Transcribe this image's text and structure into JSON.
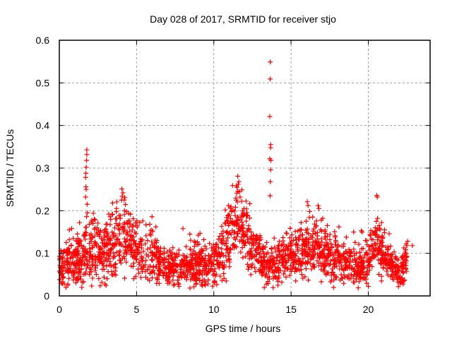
{
  "chart_data": {
    "type": "scatter",
    "title": "Day 028 of 2017, SRMTID for receiver stjo",
    "xlabel": "GPS time / hours",
    "ylabel": "SRMTID / TECUs",
    "xlim": [
      0,
      24
    ],
    "ylim": [
      0,
      0.6
    ],
    "xticks": [
      0,
      5,
      10,
      15,
      20
    ],
    "xtick_labels": [
      "0",
      "5",
      "10",
      "15",
      "20"
    ],
    "yticks": [
      0,
      0.1,
      0.2,
      0.3,
      0.4,
      0.5,
      0.6
    ],
    "ytick_labels": [
      "0",
      "0.1",
      "0.2",
      "0.3",
      "0.4",
      "0.5",
      "0.6"
    ],
    "grid": true,
    "legend": "none",
    "marker": "+",
    "color": "#ff0000",
    "series": [
      {
        "name": "SRMTID",
        "envelope": {
          "description": "approximate typical value and spread of the dense point cloud vs time (hours)",
          "x": [
            0.0,
            0.5,
            1.0,
            1.5,
            1.8,
            2.2,
            2.8,
            3.3,
            3.8,
            4.2,
            4.7,
            5.2,
            5.8,
            6.3,
            6.8,
            7.3,
            7.8,
            8.3,
            8.8,
            9.3,
            9.8,
            10.3,
            10.8,
            11.3,
            11.7,
            12.2,
            12.7,
            13.2,
            13.6,
            14.0,
            14.5,
            15.0,
            15.5,
            16.0,
            16.5,
            17.0,
            17.5,
            18.0,
            18.5,
            19.0,
            19.5,
            20.0,
            20.5,
            21.0,
            21.5,
            22.0,
            22.5
          ],
          "center": [
            0.07,
            0.08,
            0.085,
            0.09,
            0.1,
            0.12,
            0.1,
            0.12,
            0.14,
            0.14,
            0.12,
            0.1,
            0.09,
            0.085,
            0.07,
            0.07,
            0.065,
            0.07,
            0.075,
            0.07,
            0.07,
            0.09,
            0.12,
            0.16,
            0.17,
            0.14,
            0.11,
            0.08,
            0.07,
            0.085,
            0.09,
            0.1,
            0.1,
            0.11,
            0.12,
            0.1,
            0.1,
            0.085,
            0.08,
            0.075,
            0.065,
            0.09,
            0.12,
            0.1,
            0.07,
            0.055,
            0.085
          ],
          "spread": [
            0.03,
            0.035,
            0.035,
            0.04,
            0.05,
            0.05,
            0.045,
            0.05,
            0.05,
            0.05,
            0.045,
            0.04,
            0.04,
            0.035,
            0.03,
            0.03,
            0.03,
            0.03,
            0.035,
            0.035,
            0.03,
            0.04,
            0.05,
            0.05,
            0.05,
            0.05,
            0.04,
            0.03,
            0.03,
            0.035,
            0.035,
            0.035,
            0.035,
            0.04,
            0.045,
            0.04,
            0.04,
            0.035,
            0.03,
            0.03,
            0.025,
            0.035,
            0.04,
            0.035,
            0.025,
            0.02,
            0.025
          ],
          "points_per_hour": 95
        },
        "notable_points": [
          [
            13.65,
            0.549
          ],
          [
            13.65,
            0.509
          ],
          [
            13.62,
            0.421
          ],
          [
            13.68,
            0.355
          ],
          [
            13.68,
            0.348
          ],
          [
            13.62,
            0.322
          ],
          [
            13.7,
            0.318
          ],
          [
            13.68,
            0.296
          ],
          [
            13.66,
            0.268
          ],
          [
            13.64,
            0.235
          ],
          [
            1.78,
            0.343
          ],
          [
            1.78,
            0.332
          ],
          [
            1.76,
            0.318
          ],
          [
            1.74,
            0.302
          ],
          [
            1.72,
            0.288
          ],
          [
            1.7,
            0.278
          ],
          [
            1.72,
            0.256
          ],
          [
            1.74,
            0.25
          ],
          [
            1.7,
            0.232
          ],
          [
            1.8,
            0.215
          ],
          [
            1.82,
            0.195
          ],
          [
            1.76,
            0.186
          ],
          [
            11.55,
            0.281
          ],
          [
            11.62,
            0.268
          ],
          [
            11.58,
            0.262
          ],
          [
            11.5,
            0.255
          ],
          [
            11.65,
            0.244
          ],
          [
            11.7,
            0.232
          ],
          [
            11.45,
            0.225
          ],
          [
            11.8,
            0.222
          ],
          [
            11.4,
            0.208
          ],
          [
            11.95,
            0.205
          ],
          [
            10.95,
            0.212
          ],
          [
            11.15,
            0.198
          ],
          [
            12.1,
            0.188
          ],
          [
            4.05,
            0.251
          ],
          [
            4.12,
            0.242
          ],
          [
            3.45,
            0.218
          ],
          [
            4.2,
            0.225
          ],
          [
            3.7,
            0.205
          ],
          [
            4.35,
            0.198
          ],
          [
            3.2,
            0.192
          ],
          [
            3.95,
            0.188
          ],
          [
            4.55,
            0.176
          ],
          [
            6.0,
            0.186
          ],
          [
            5.4,
            0.176
          ],
          [
            5.85,
            0.168
          ],
          [
            6.25,
            0.162
          ],
          [
            5.2,
            0.172
          ],
          [
            8.0,
            0.158
          ],
          [
            8.45,
            0.145
          ],
          [
            9.35,
            0.132
          ],
          [
            8.8,
            0.125
          ],
          [
            16.05,
            0.221
          ],
          [
            16.1,
            0.212
          ],
          [
            16.75,
            0.212
          ],
          [
            16.8,
            0.205
          ],
          [
            16.2,
            0.198
          ],
          [
            16.4,
            0.185
          ],
          [
            17.05,
            0.182
          ],
          [
            16.95,
            0.178
          ],
          [
            15.65,
            0.172
          ],
          [
            17.35,
            0.165
          ],
          [
            18.1,
            0.162
          ],
          [
            19.05,
            0.15
          ],
          [
            20.55,
            0.236
          ],
          [
            20.58,
            0.232
          ],
          [
            20.6,
            0.182
          ],
          [
            20.52,
            0.175
          ],
          [
            20.7,
            0.165
          ],
          [
            20.45,
            0.16
          ],
          [
            21.05,
            0.155
          ],
          [
            19.55,
            0.153
          ],
          [
            19.6,
            0.15
          ],
          [
            21.35,
            0.146
          ],
          [
            22.55,
            0.128
          ],
          [
            22.85,
            0.118
          ],
          [
            22.45,
            0.122
          ],
          [
            0.8,
            0.158
          ],
          [
            0.65,
            0.155
          ],
          [
            0.9,
            0.135
          ],
          [
            0.1,
            0.1
          ],
          [
            1.45,
            0.02
          ],
          [
            0.55,
            0.028
          ],
          [
            0.05,
            0.038
          ],
          [
            2.75,
            0.032
          ],
          [
            2.95,
            0.028
          ],
          [
            9.45,
            0.025
          ],
          [
            7.0,
            0.035
          ],
          [
            6.35,
            0.038
          ],
          [
            7.7,
            0.03
          ],
          [
            8.5,
            0.038
          ],
          [
            10.05,
            0.035
          ],
          [
            10.8,
            0.035
          ],
          [
            12.4,
            0.05
          ],
          [
            13.15,
            0.055
          ],
          [
            14.15,
            0.025
          ],
          [
            14.4,
            0.032
          ],
          [
            15.3,
            0.035
          ],
          [
            15.9,
            0.045
          ],
          [
            18.75,
            0.04
          ],
          [
            19.1,
            0.032
          ],
          [
            19.2,
            0.04
          ],
          [
            20.85,
            0.035
          ],
          [
            21.55,
            0.045
          ],
          [
            21.95,
            0.022
          ],
          [
            22.05,
            0.03
          ],
          [
            22.3,
            0.035
          ]
        ]
      }
    ]
  }
}
